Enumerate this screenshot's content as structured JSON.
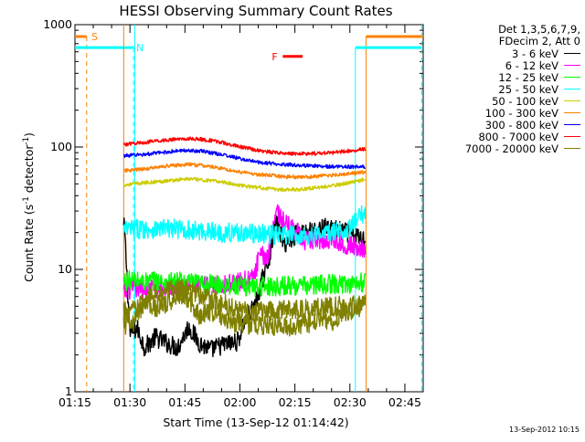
{
  "chart_data": {
    "type": "line",
    "title": "HESSI Observing Summary Count Rates",
    "xlabel": "Start Time (13-Sep-12 01:14:42)",
    "ylabel_prefix": "Count Rate (s",
    "ylabel_exp1": "-1",
    "ylabel_mid": " detector",
    "ylabel_exp2": "-1",
    "ylabel_suffix": ")",
    "y_scale": "log",
    "ylim": [
      1,
      1000
    ],
    "xlim_min": [
      75,
      170
    ],
    "x_ticks": [
      {
        "min": 75,
        "label": "01:15"
      },
      {
        "min": 90,
        "label": "01:30"
      },
      {
        "min": 105,
        "label": "01:45"
      },
      {
        "min": 120,
        "label": "02:00"
      },
      {
        "min": 135,
        "label": "02:15"
      },
      {
        "min": 150,
        "label": "02:30"
      },
      {
        "min": 165,
        "label": "02:45"
      }
    ],
    "y_ticks": [
      {
        "value": 1,
        "label": "1"
      },
      {
        "value": 10,
        "label": "10"
      },
      {
        "value": 100,
        "label": "100"
      },
      {
        "value": 1000,
        "label": "1000"
      }
    ],
    "data_window_min": [
      88.3,
      154.2
    ],
    "legend_header": [
      "Det 1,3,5,6,7,9,",
      "FDecim 2, Att 0"
    ],
    "series": [
      {
        "name": "3 - 6 keV",
        "color": "#000000",
        "values": [
          [
            88.5,
            22
          ],
          [
            90,
            3.0
          ],
          [
            92,
            3.3
          ],
          [
            94,
            2.3
          ],
          [
            97,
            2.8
          ],
          [
            100,
            2.5
          ],
          [
            103,
            2.3
          ],
          [
            106,
            3.4
          ],
          [
            109,
            2.5
          ],
          [
            112,
            2.2
          ],
          [
            115,
            2.4
          ],
          [
            118,
            2.5
          ],
          [
            119.5,
            2.6
          ],
          [
            121,
            3.6
          ],
          [
            123,
            4.5
          ],
          [
            124,
            5.0
          ],
          [
            126,
            8.0
          ],
          [
            128,
            12.5
          ],
          [
            129,
            19
          ],
          [
            130,
            24
          ],
          [
            131,
            20
          ],
          [
            132,
            16
          ],
          [
            134,
            18
          ],
          [
            136,
            20
          ],
          [
            138,
            21
          ],
          [
            140,
            20
          ],
          [
            143,
            22
          ],
          [
            146,
            21
          ],
          [
            149,
            20
          ],
          [
            151,
            19
          ],
          [
            153,
            18
          ]
        ]
      },
      {
        "name": "6 - 12 keV",
        "color": "#ff00ff",
        "values": [
          [
            88.5,
            6.5
          ],
          [
            90,
            6.8
          ],
          [
            93,
            7.0
          ],
          [
            96,
            7.0
          ],
          [
            100,
            7.1
          ],
          [
            103,
            7.1
          ],
          [
            106,
            7.3
          ],
          [
            109,
            7.2
          ],
          [
            112,
            7.4
          ],
          [
            115,
            7.5
          ],
          [
            118,
            7.7
          ],
          [
            121,
            8.0
          ],
          [
            123,
            8.3
          ],
          [
            124,
            9.0
          ],
          [
            125,
            12
          ],
          [
            126,
            13
          ],
          [
            127,
            12.5
          ],
          [
            128,
            14
          ],
          [
            129,
            24
          ],
          [
            130,
            31
          ],
          [
            131,
            27
          ],
          [
            132,
            24
          ],
          [
            134,
            22
          ],
          [
            136,
            20
          ],
          [
            137,
            17
          ],
          [
            139,
            17
          ],
          [
            141,
            18
          ],
          [
            143,
            17
          ],
          [
            145,
            18
          ],
          [
            147,
            17
          ],
          [
            149,
            16
          ],
          [
            151,
            15.5
          ],
          [
            153,
            15
          ]
        ]
      },
      {
        "name": "12 - 25 keV",
        "color": "#00ff00",
        "values": [
          [
            88.5,
            8.0
          ],
          [
            91,
            8.2
          ],
          [
            94,
            7.9
          ],
          [
            97,
            8.1
          ],
          [
            100,
            7.8
          ],
          [
            103,
            8.0
          ],
          [
            106,
            7.8
          ],
          [
            109,
            7.6
          ],
          [
            112,
            7.6
          ],
          [
            115,
            7.5
          ],
          [
            118,
            7.4
          ],
          [
            121,
            7.3
          ],
          [
            124,
            7.2
          ],
          [
            127,
            7.3
          ],
          [
            130,
            7.3
          ],
          [
            133,
            7.4
          ],
          [
            136,
            7.3
          ],
          [
            139,
            7.4
          ],
          [
            142,
            7.5
          ],
          [
            145,
            7.6
          ],
          [
            148,
            7.6
          ],
          [
            151,
            7.7
          ],
          [
            154,
            7.8
          ]
        ]
      },
      {
        "name": "25 - 50 keV",
        "color": "#00ffff",
        "values": [
          [
            88.5,
            21
          ],
          [
            91,
            21.5
          ],
          [
            94,
            21.5
          ],
          [
            97,
            21.5
          ],
          [
            100,
            21.5
          ],
          [
            103,
            21.5
          ],
          [
            106,
            21
          ],
          [
            109,
            20.5
          ],
          [
            112,
            20.5
          ],
          [
            115,
            20
          ],
          [
            118,
            20
          ],
          [
            121,
            20
          ],
          [
            124,
            19.5
          ],
          [
            127,
            19.5
          ],
          [
            130,
            19
          ],
          [
            133,
            19
          ],
          [
            136,
            19
          ],
          [
            139,
            19
          ],
          [
            142,
            19.5
          ],
          [
            145,
            20
          ],
          [
            148,
            21
          ],
          [
            150,
            22
          ],
          [
            152,
            25
          ],
          [
            153.5,
            29
          ]
        ]
      },
      {
        "name": "50 - 100 keV",
        "color": "#cccc00",
        "values": [
          [
            88.5,
            49
          ],
          [
            91,
            50
          ],
          [
            94,
            51
          ],
          [
            97,
            52
          ],
          [
            100,
            53
          ],
          [
            103,
            54
          ],
          [
            106,
            55
          ],
          [
            109,
            54
          ],
          [
            112,
            53
          ],
          [
            115,
            52
          ],
          [
            118,
            50
          ],
          [
            121,
            48
          ],
          [
            124,
            47
          ],
          [
            127,
            46
          ],
          [
            130,
            45
          ],
          [
            133,
            45
          ],
          [
            136,
            45
          ],
          [
            139,
            46
          ],
          [
            142,
            47
          ],
          [
            145,
            48
          ],
          [
            148,
            50
          ],
          [
            151,
            52
          ],
          [
            153.5,
            54
          ]
        ]
      },
      {
        "name": "100 - 300 keV",
        "color": "#ff8000",
        "values": [
          [
            88.5,
            64
          ],
          [
            91,
            65
          ],
          [
            94,
            66
          ],
          [
            97,
            68
          ],
          [
            100,
            70
          ],
          [
            103,
            71
          ],
          [
            106,
            72
          ],
          [
            109,
            71
          ],
          [
            112,
            69
          ],
          [
            115,
            67
          ],
          [
            118,
            64
          ],
          [
            121,
            62
          ],
          [
            124,
            60
          ],
          [
            127,
            59
          ],
          [
            130,
            58
          ],
          [
            133,
            57
          ],
          [
            136,
            57
          ],
          [
            139,
            57
          ],
          [
            142,
            58
          ],
          [
            145,
            59
          ],
          [
            148,
            60
          ],
          [
            151,
            61
          ],
          [
            153.5,
            62
          ]
        ]
      },
      {
        "name": "300 - 800 keV",
        "color": "#0000ff",
        "values": [
          [
            88.5,
            85
          ],
          [
            91,
            86
          ],
          [
            94,
            87
          ],
          [
            97,
            89
          ],
          [
            100,
            91
          ],
          [
            103,
            93
          ],
          [
            106,
            94
          ],
          [
            109,
            93
          ],
          [
            112,
            90
          ],
          [
            115,
            87
          ],
          [
            118,
            83
          ],
          [
            121,
            79
          ],
          [
            124,
            76
          ],
          [
            127,
            74
          ],
          [
            130,
            73
          ],
          [
            133,
            72
          ],
          [
            136,
            71
          ],
          [
            139,
            70
          ],
          [
            142,
            70
          ],
          [
            145,
            69
          ],
          [
            148,
            69
          ],
          [
            151,
            69
          ],
          [
            153.5,
            69
          ]
        ]
      },
      {
        "name": "800 - 7000 keV",
        "color": "#ff0000",
        "values": [
          [
            88.5,
            105
          ],
          [
            91,
            107
          ],
          [
            94,
            109
          ],
          [
            97,
            112
          ],
          [
            100,
            114
          ],
          [
            103,
            116
          ],
          [
            106,
            117
          ],
          [
            109,
            116
          ],
          [
            112,
            113
          ],
          [
            115,
            109
          ],
          [
            118,
            104
          ],
          [
            121,
            99
          ],
          [
            124,
            95
          ],
          [
            127,
            92
          ],
          [
            130,
            90
          ],
          [
            133,
            89
          ],
          [
            136,
            88
          ],
          [
            139,
            88
          ],
          [
            142,
            89
          ],
          [
            145,
            90
          ],
          [
            148,
            92
          ],
          [
            151,
            94
          ],
          [
            153.5,
            96
          ]
        ]
      },
      {
        "name": "7000 - 20000 keV",
        "color": "#808000",
        "values": [
          [
            88.5,
            3.5
          ],
          [
            91,
            3.6
          ],
          [
            94,
            5.5
          ],
          [
            97,
            4.8
          ],
          [
            100,
            5.2
          ],
          [
            103,
            6.2
          ],
          [
            106,
            5.8
          ],
          [
            109,
            4.2
          ],
          [
            112,
            4.6
          ],
          [
            115,
            4.1
          ],
          [
            118,
            3.7
          ],
          [
            121,
            3.6
          ],
          [
            124,
            3.5
          ],
          [
            127,
            3.5
          ],
          [
            130,
            3.4
          ],
          [
            133,
            3.4
          ],
          [
            136,
            3.5
          ],
          [
            139,
            3.6
          ],
          [
            142,
            4.1
          ],
          [
            145,
            3.7
          ],
          [
            148,
            4.4
          ],
          [
            151,
            4.7
          ],
          [
            153.5,
            4.8
          ]
        ]
      },
      {
        "name": "7000 - 20000 keV (upper band)",
        "color": "#808000",
        "legend": false,
        "values": [
          [
            88.5,
            4.5
          ],
          [
            92,
            4.8
          ],
          [
            96,
            6.2
          ],
          [
            100,
            6.8
          ],
          [
            104,
            7.0
          ],
          [
            107,
            6.6
          ],
          [
            110,
            6.0
          ],
          [
            114,
            5.6
          ],
          [
            118,
            4.8
          ],
          [
            122,
            4.6
          ],
          [
            126,
            4.5
          ],
          [
            130,
            4.6
          ],
          [
            134,
            4.7
          ],
          [
            138,
            4.8
          ],
          [
            142,
            4.9
          ],
          [
            146,
            5.0
          ],
          [
            150,
            5.1
          ],
          [
            153.5,
            5.2
          ]
        ]
      }
    ],
    "flags": [
      {
        "label": "S",
        "color": "#ff8000",
        "min_start": 75,
        "min_end": 78.2,
        "level": 800,
        "label_min": 79.5,
        "marker_min": 78.2,
        "marker_style": "dashed"
      },
      {
        "label": "",
        "color": "#ff8000",
        "min_start": 154.4,
        "min_end": 170,
        "level": 800,
        "marker_min": 154.4,
        "marker_style": "solid"
      },
      {
        "label": "N",
        "color": "#00ffff",
        "min_start": 75,
        "min_end": 91,
        "level": 650,
        "label_min": 91.7,
        "marker_min": 91,
        "marker_style": "dashed"
      },
      {
        "label": "",
        "color": "#00ffff",
        "min_start": 151.5,
        "min_end": 169.6,
        "level": 650,
        "marker_min": 151.5,
        "marker_style": "solid"
      },
      {
        "label": "F",
        "color": "#ff0000",
        "min_start": 131.7,
        "min_end": 137.1,
        "level": 550,
        "label_min": 128.7
      }
    ],
    "end_markers": [
      {
        "min": 88.3,
        "color": "#ff8000"
      },
      {
        "min": 91.3,
        "color": "#00ffff",
        "style": "solid"
      },
      {
        "min": 169.6,
        "color": "#00ffff",
        "style": "dashed"
      }
    ]
  },
  "footer_stamp": "13-Sep-2012 10:15"
}
